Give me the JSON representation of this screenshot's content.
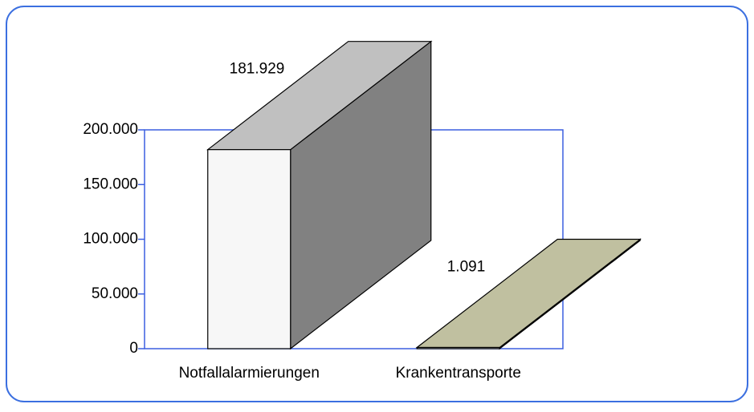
{
  "chart_data": {
    "type": "bar3d",
    "categories": [
      "Notfallalarmierungen",
      "Krankentransporte"
    ],
    "values": [
      181929,
      1091
    ],
    "value_labels": [
      "181.929",
      "1.091"
    ],
    "colors": [
      "#c0c0c0",
      "#c0c0a0"
    ],
    "ylim": [
      0,
      200000
    ],
    "yticks": [
      0,
      {
        "value": 50000,
        "label": "50.000"
      },
      {
        "value": 100000,
        "label": "100.000"
      },
      {
        "value": 150000,
        "label": "150.000"
      },
      {
        "value": 200000,
        "label": "200.000"
      }
    ]
  }
}
